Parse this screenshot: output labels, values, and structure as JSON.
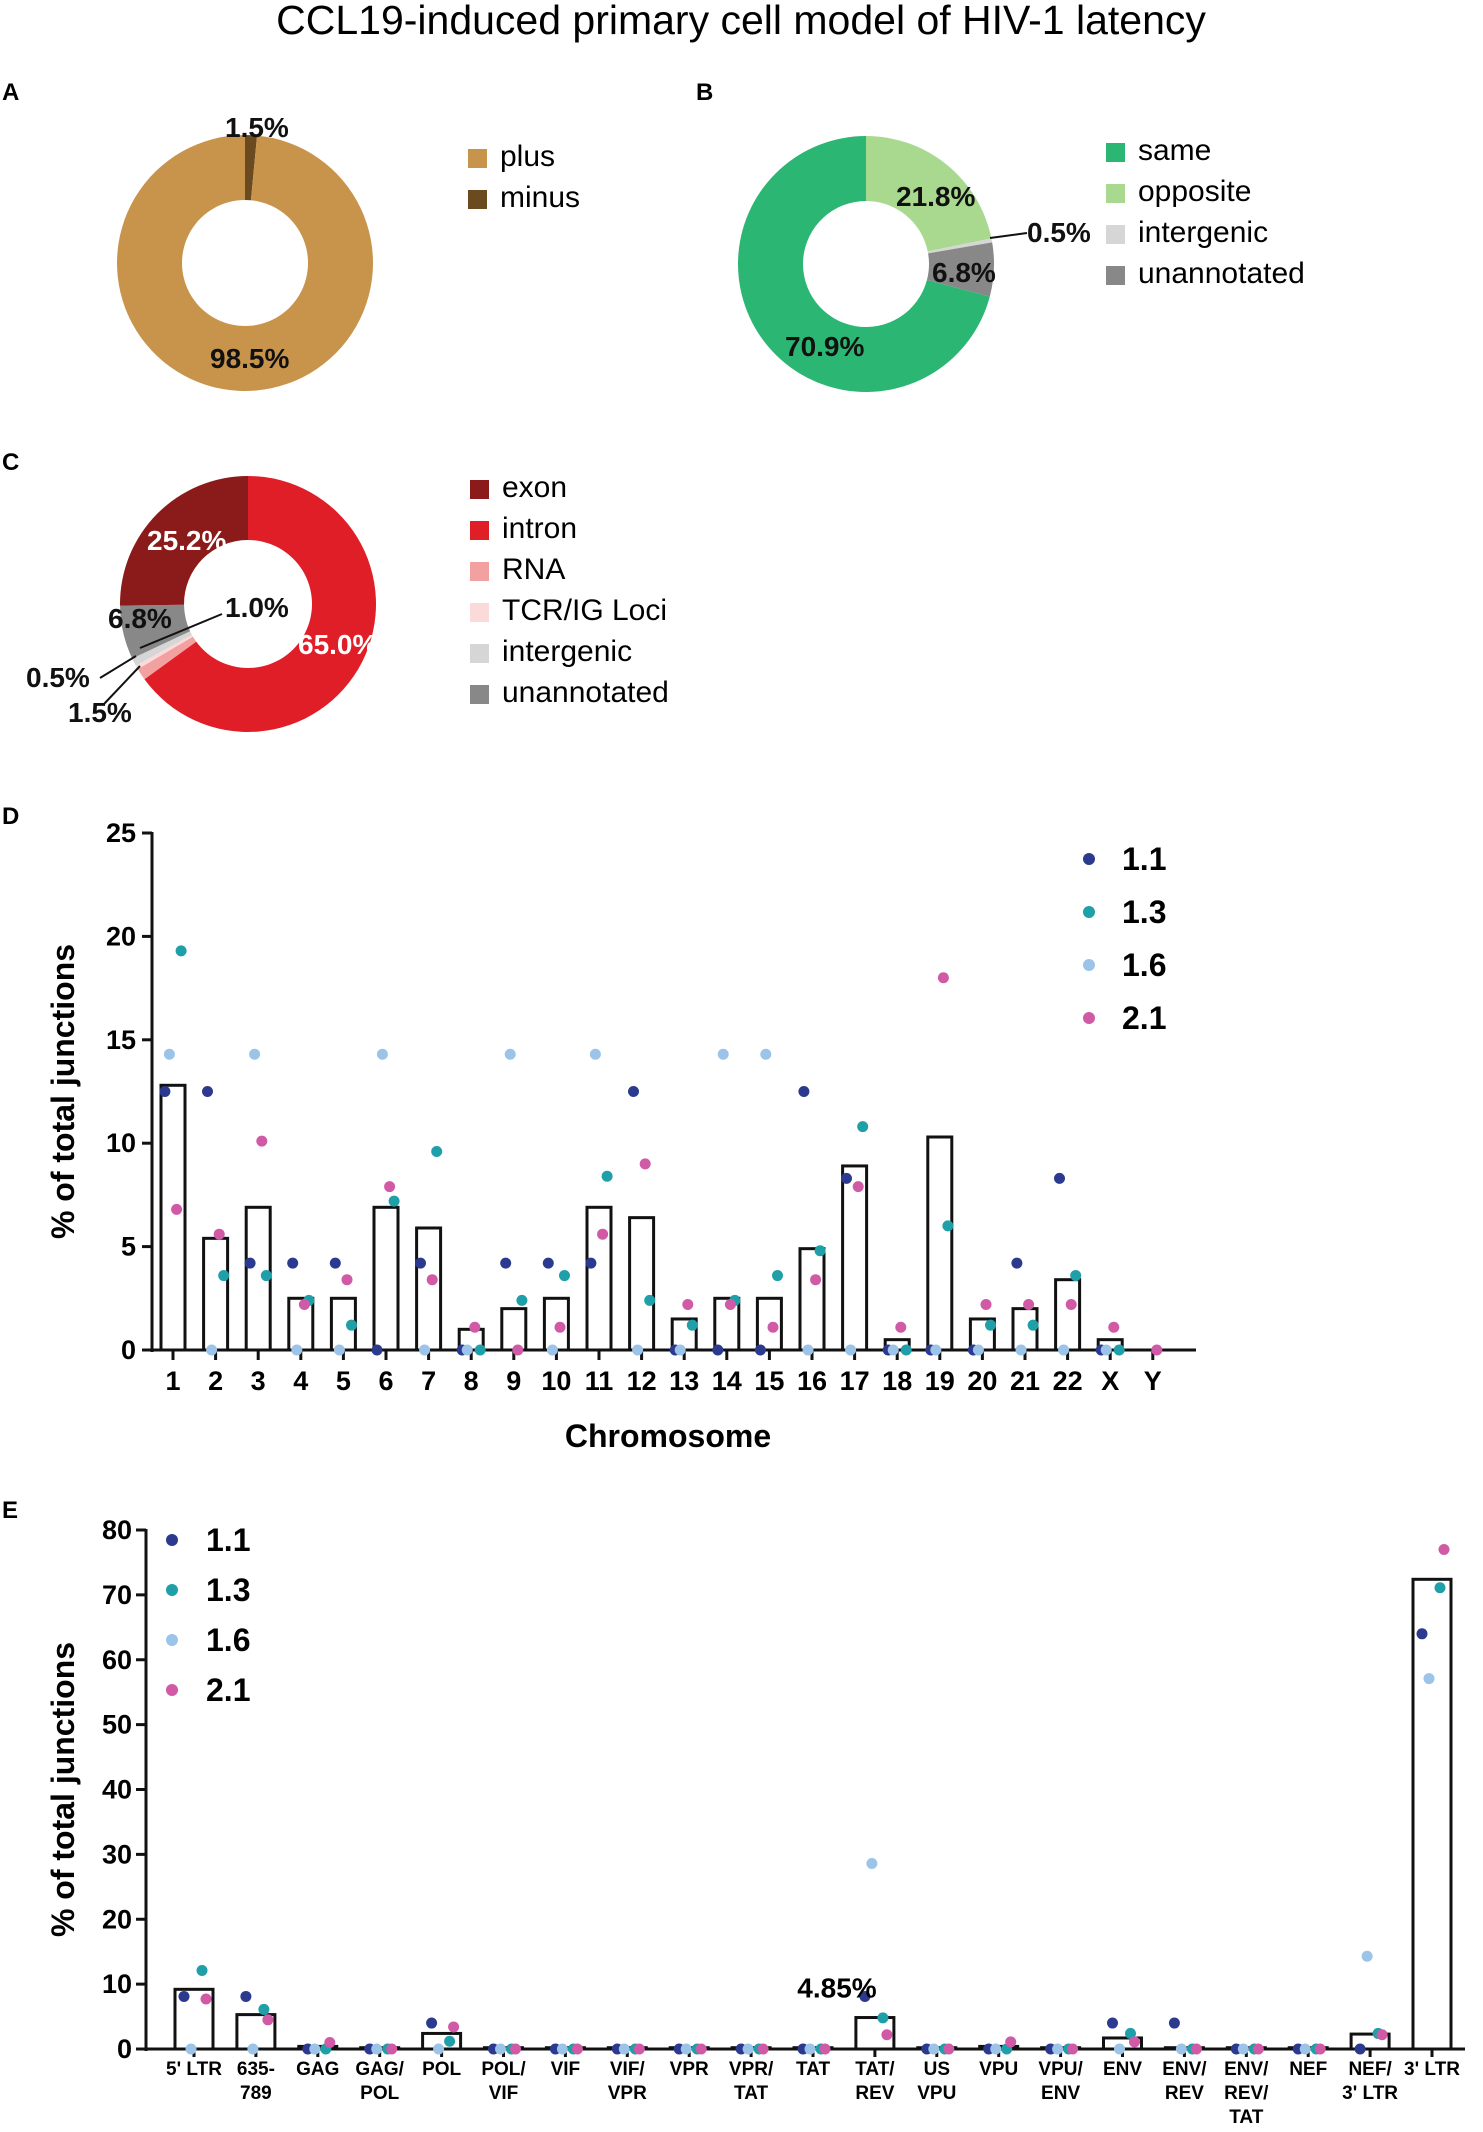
{
  "title": "CCL19-induced primary cell model of HIV-1 latency",
  "panels": {
    "A": "A",
    "B": "B",
    "C": "C",
    "D": "D",
    "E": "E"
  },
  "sample_colors": {
    "1.1": "#2b3a8f",
    "1.3": "#1f9fa8",
    "1.6": "#9cc3e8",
    "2.1": "#d05aa6"
  },
  "chart_data": [
    {
      "id": "A",
      "type": "pie",
      "donut": true,
      "slices": [
        {
          "label": "plus",
          "value": 98.5,
          "display": "98.5%",
          "color": "#c8944c"
        },
        {
          "label": "minus",
          "value": 1.5,
          "display": "1.5%",
          "color": "#6b4a1f"
        }
      ]
    },
    {
      "id": "B",
      "type": "pie",
      "donut": true,
      "slices": [
        {
          "label": "same",
          "value": 70.9,
          "display": "70.9%",
          "color": "#2bb673"
        },
        {
          "label": "opposite",
          "value": 21.8,
          "display": "21.8%",
          "color": "#a8d98f"
        },
        {
          "label": "intergenic",
          "value": 0.5,
          "display": "0.5%",
          "color": "#d6d6d6"
        },
        {
          "label": "unannotated",
          "value": 6.8,
          "display": "6.8%",
          "color": "#888888"
        }
      ]
    },
    {
      "id": "C",
      "type": "pie",
      "donut": true,
      "slices": [
        {
          "label": "exon",
          "value": 25.2,
          "display": "25.2%",
          "color": "#8b1a1a"
        },
        {
          "label": "intron",
          "value": 65.0,
          "display": "65.0%",
          "color": "#e01e28"
        },
        {
          "label": "RNA",
          "value": 1.5,
          "display": "1.5%",
          "color": "#f2a0a0"
        },
        {
          "label": "TCR/IG Loci",
          "value": 0.5,
          "display": "0.5%",
          "color": "#fbdada"
        },
        {
          "label": "intergenic",
          "value": 1.0,
          "display": "1.0%",
          "color": "#d6d6d6"
        },
        {
          "label": "unannotated",
          "value": 6.8,
          "display": "6.8%",
          "color": "#888888"
        }
      ]
    },
    {
      "id": "D",
      "type": "bar",
      "xlabel": "Chromosome",
      "ylabel": "% of total junctions",
      "ylim": [
        0,
        25
      ],
      "yticks": [
        "0",
        "5",
        "10",
        "15",
        "20",
        "25"
      ],
      "categories": [
        "1",
        "2",
        "3",
        "4",
        "5",
        "6",
        "7",
        "8",
        "9",
        "10",
        "11",
        "12",
        "13",
        "14",
        "15",
        "16",
        "17",
        "18",
        "19",
        "20",
        "21",
        "22",
        "X",
        "Y"
      ],
      "values": [
        12.8,
        5.4,
        6.9,
        2.5,
        2.5,
        6.9,
        5.9,
        1.0,
        2.0,
        2.5,
        6.9,
        6.4,
        1.5,
        2.5,
        2.5,
        4.9,
        8.9,
        0.5,
        10.3,
        1.5,
        2.0,
        3.4,
        0.5,
        0
      ],
      "series": [
        {
          "name": "1.1",
          "values": [
            12.5,
            12.5,
            4.2,
            4.2,
            4.2,
            0,
            4.2,
            0,
            4.2,
            4.2,
            4.2,
            12.5,
            0,
            0,
            0,
            12.5,
            8.3,
            0,
            0,
            0,
            4.2,
            8.3,
            0,
            null
          ]
        },
        {
          "name": "1.3",
          "values": [
            19.3,
            3.6,
            3.6,
            2.4,
            1.2,
            7.2,
            9.6,
            0,
            2.4,
            3.6,
            8.4,
            2.4,
            1.2,
            2.4,
            3.6,
            4.8,
            10.8,
            0,
            6.0,
            1.2,
            1.2,
            3.6,
            0,
            null
          ]
        },
        {
          "name": "1.6",
          "values": [
            14.3,
            0,
            14.3,
            0,
            0,
            14.3,
            0,
            0,
            14.3,
            0,
            14.3,
            0,
            0,
            14.3,
            14.3,
            0,
            0,
            0,
            0,
            0,
            0,
            0,
            0,
            null
          ]
        },
        {
          "name": "2.1",
          "values": [
            6.8,
            5.6,
            10.1,
            2.2,
            3.4,
            7.9,
            3.4,
            1.1,
            0,
            1.1,
            5.6,
            9.0,
            2.2,
            2.2,
            1.1,
            3.4,
            7.9,
            1.1,
            18.0,
            2.2,
            2.2,
            2.2,
            1.1,
            0
          ]
        }
      ]
    },
    {
      "id": "E",
      "type": "bar",
      "xlabel": "",
      "ylabel": "% of total junctions",
      "ylim": [
        0,
        80
      ],
      "yticks": [
        "0",
        "10",
        "20",
        "30",
        "40",
        "50",
        "60",
        "70",
        "80"
      ],
      "annotation": "4.85%",
      "categories": [
        [
          "5' LTR"
        ],
        [
          "635-",
          "789"
        ],
        [
          "GAG"
        ],
        [
          "GAG/",
          "POL"
        ],
        [
          "POL"
        ],
        [
          "POL/",
          "VIF"
        ],
        [
          "VIF"
        ],
        [
          "VIF/",
          "VPR"
        ],
        [
          "VPR"
        ],
        [
          "VPR/",
          "TAT"
        ],
        [
          "TAT"
        ],
        [
          "TAT/",
          "REV"
        ],
        [
          "US",
          "VPU"
        ],
        [
          "VPU"
        ],
        [
          "VPU/",
          "ENV"
        ],
        [
          "ENV"
        ],
        [
          "ENV/",
          "REV"
        ],
        [
          "ENV/",
          "REV/",
          "TAT"
        ],
        [
          "NEF"
        ],
        [
          "NEF/",
          "3' LTR"
        ],
        [
          "3' LTR"
        ]
      ],
      "values": [
        9.2,
        5.3,
        0.4,
        0.2,
        2.4,
        0.2,
        0.2,
        0.2,
        0.2,
        0.2,
        0.2,
        4.85,
        0.2,
        0.4,
        0.2,
        1.7,
        0.2,
        0.2,
        0.2,
        2.3,
        72.4
      ],
      "series": [
        {
          "name": "1.1",
          "values": [
            8.1,
            8.1,
            0,
            0,
            4.0,
            0,
            0,
            0,
            0,
            0,
            0,
            8.1,
            0,
            0,
            0,
            4.0,
            4.0,
            0,
            0,
            0,
            64.0
          ]
        },
        {
          "name": "1.3",
          "values": [
            12.1,
            6.1,
            0,
            0,
            1.2,
            0,
            0,
            0,
            0,
            0,
            0,
            4.8,
            0,
            0,
            0,
            2.4,
            0,
            0,
            0,
            2.4,
            71.1
          ]
        },
        {
          "name": "1.6",
          "values": [
            0,
            0,
            0,
            0,
            0,
            0,
            0,
            0,
            0,
            0,
            0,
            28.6,
            0,
            0,
            0,
            0,
            0,
            0,
            0,
            14.3,
            57.1
          ]
        },
        {
          "name": "2.1",
          "values": [
            7.7,
            4.5,
            1.0,
            0,
            3.4,
            0,
            0,
            0,
            0,
            0,
            0,
            2.2,
            0,
            1.1,
            0,
            1.1,
            0,
            0,
            0,
            2.2,
            77.0
          ]
        }
      ]
    }
  ]
}
